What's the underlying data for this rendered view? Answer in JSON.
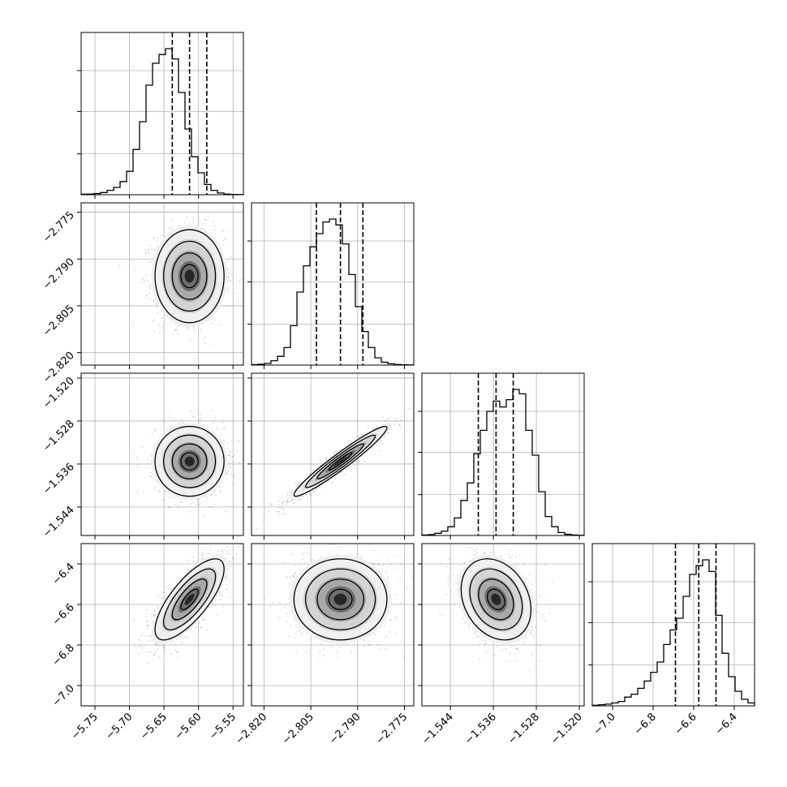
{
  "chart_data": {
    "type": "corner",
    "parameters": [
      "",
      "",
      "",
      ""
    ],
    "grid": true,
    "medians": [
      -5.613,
      -2.7955,
      -1.5355,
      -6.575
    ],
    "quantiles_16_84": [
      [
        -5.638,
        -5.588
      ],
      [
        -2.8032,
        -2.7883
      ],
      [
        -1.5388,
        -1.5323
      ],
      [
        -6.69,
        -6.49
      ]
    ],
    "axes": [
      {
        "range": [
          -5.77,
          -5.535
        ],
        "ticks": [
          -5.75,
          -5.7,
          -5.65,
          -5.6,
          -5.55
        ],
        "tick_labels": [
          "−5.75",
          "−5.70",
          "−5.65",
          "−5.60",
          "−5.55"
        ]
      },
      {
        "range": [
          -2.824,
          -2.772
        ],
        "ticks": [
          -2.82,
          -2.805,
          -2.79,
          -2.775
        ],
        "tick_labels": [
          "−2.820",
          "−2.805",
          "−2.790",
          "−2.775"
        ]
      },
      {
        "range": [
          -1.5493,
          -1.5191
        ],
        "ticks": [
          -1.544,
          -1.536,
          -1.528,
          -1.52
        ],
        "tick_labels": [
          "−1.544",
          "−1.536",
          "−1.528",
          "−1.520"
        ]
      },
      {
        "range": [
          -7.1,
          -6.3
        ],
        "ticks": [
          -7.0,
          -6.8,
          -6.6,
          -6.4
        ],
        "tick_labels": [
          "−7.0",
          "−6.8",
          "−6.6",
          "−6.4"
        ]
      }
    ],
    "histograms": [
      {
        "counts": [
          0.003,
          0.005,
          0.008,
          0.015,
          0.03,
          0.05,
          0.09,
          0.16,
          0.31,
          0.5,
          0.75,
          0.9,
          0.96,
          1.0,
          0.93,
          0.7,
          0.45,
          0.26,
          0.15,
          0.07,
          0.03,
          0.012,
          0.004,
          0.002,
          0.001
        ]
      },
      {
        "counts": [
          0.003,
          0.006,
          0.012,
          0.03,
          0.06,
          0.12,
          0.27,
          0.5,
          0.68,
          0.81,
          0.9,
          0.98,
          1.0,
          0.96,
          0.83,
          0.62,
          0.4,
          0.23,
          0.12,
          0.05,
          0.02,
          0.009,
          0.004,
          0.002,
          0.001
        ]
      },
      {
        "counts": [
          0.003,
          0.006,
          0.015,
          0.03,
          0.06,
          0.12,
          0.24,
          0.36,
          0.56,
          0.72,
          0.85,
          0.92,
          0.88,
          0.93,
          1.0,
          0.97,
          0.72,
          0.55,
          0.3,
          0.13,
          0.06,
          0.02,
          0.008,
          0.003,
          0.001
        ]
      },
      {
        "counts": [
          0.004,
          0.008,
          0.012,
          0.02,
          0.03,
          0.06,
          0.08,
          0.12,
          0.17,
          0.23,
          0.3,
          0.42,
          0.52,
          0.6,
          0.75,
          0.9,
          0.96,
          1.0,
          0.92,
          0.62,
          0.36,
          0.2,
          0.1,
          0.045,
          0.02
        ]
      }
    ],
    "correlations": [
      {
        "pair": [
          0,
          1
        ],
        "rho": 0.0
      },
      {
        "pair": [
          0,
          2
        ],
        "rho": 0.0
      },
      {
        "pair": [
          1,
          2
        ],
        "rho": 0.96
      },
      {
        "pair": [
          0,
          3
        ],
        "rho": 0.75
      },
      {
        "pair": [
          1,
          3
        ],
        "rho": 0.0
      },
      {
        "pair": [
          2,
          3
        ],
        "rho": -0.25
      }
    ],
    "contour_levels_sigma": [
      0.5,
      1.0,
      1.5,
      2.0
    ]
  }
}
